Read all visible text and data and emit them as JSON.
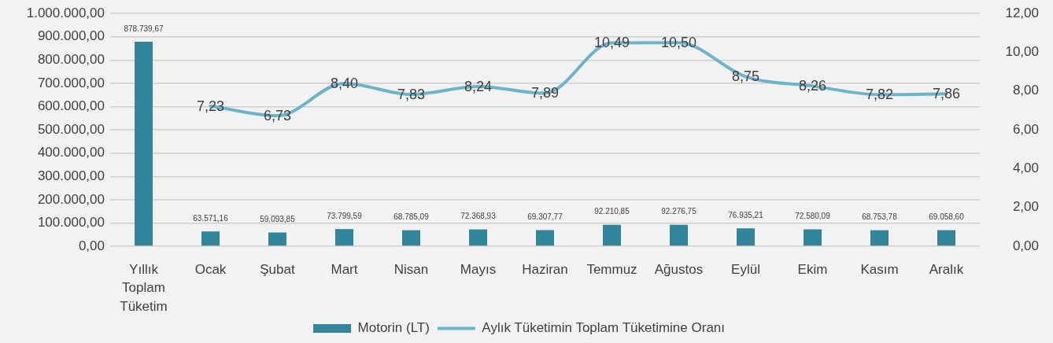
{
  "chart_data": {
    "type": "bar",
    "categories": [
      "Yıllık Toplam Tüketim",
      "Ocak",
      "Şubat",
      "Mart",
      "Nisan",
      "Mayıs",
      "Haziran",
      "Temmuz",
      "Ağustos",
      "Eylül",
      "Ekim",
      "Kasım",
      "Aralık"
    ],
    "series": [
      {
        "name": "Motorin (LT)",
        "color": "#31869b",
        "values": [
          878739.67,
          63571.16,
          59093.85,
          73799.59,
          68785.09,
          72368.93,
          69307.77,
          92210.85,
          92276.75,
          76935.21,
          72580.09,
          68753.78,
          69058.6
        ],
        "value_labels": [
          "878.739,67",
          "63.571,16",
          "59.093,85",
          "73.799,59",
          "68.785,09",
          "72.368,93",
          "69.307,77",
          "92.210,85",
          "92.276,75",
          "76.935,21",
          "72.580,09",
          "68.753,78",
          "69.058,60"
        ]
      },
      {
        "name": "Aylık Tüketimin Toplam Tüketimine Oranı",
        "type": "line",
        "axis": "y2",
        "color": "#6cb4c9",
        "values": [
          null,
          7.23,
          6.73,
          8.4,
          7.83,
          8.24,
          7.89,
          10.49,
          10.5,
          8.75,
          8.26,
          7.82,
          7.86
        ],
        "value_labels": [
          null,
          "7,23",
          "6,73",
          "8,40",
          "7,83",
          "8,24",
          "7,89",
          "10,49",
          "10,50",
          "8,75",
          "8,26",
          "7,82",
          "7,86"
        ]
      }
    ],
    "ylim": [
      0,
      1000000
    ],
    "yticks": [
      {
        "value": 0,
        "label": "0,00"
      },
      {
        "value": 100000,
        "label": "100.000,00"
      },
      {
        "value": 200000,
        "label": "200.000,00"
      },
      {
        "value": 300000,
        "label": "300.000,00"
      },
      {
        "value": 400000,
        "label": "400.000,00"
      },
      {
        "value": 500000,
        "label": "500.000,00"
      },
      {
        "value": 600000,
        "label": "600.000,00"
      },
      {
        "value": 700000,
        "label": "700.000,00"
      },
      {
        "value": 800000,
        "label": "800.000,00"
      },
      {
        "value": 900000,
        "label": "900.000,00"
      },
      {
        "value": 1000000,
        "label": "1.000.000,00"
      }
    ],
    "y2lim": [
      0,
      12
    ],
    "y2ticks": [
      {
        "value": 0,
        "label": "0,00"
      },
      {
        "value": 2,
        "label": "2,00"
      },
      {
        "value": 4,
        "label": "4,00"
      },
      {
        "value": 6,
        "label": "6,00"
      },
      {
        "value": 8,
        "label": "8,00"
      },
      {
        "value": 10,
        "label": "10,00"
      },
      {
        "value": 12,
        "label": "12,00"
      }
    ],
    "grid": "y",
    "legend": "bottom",
    "marker": "none"
  }
}
